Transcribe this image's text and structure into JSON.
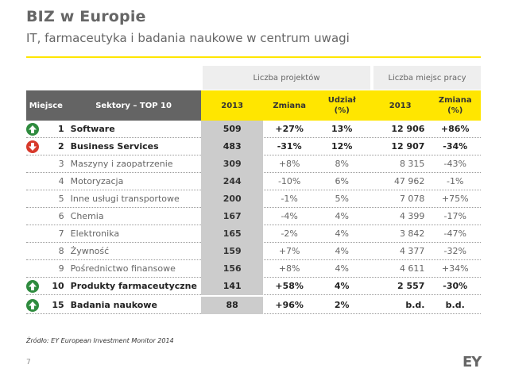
{
  "header": {
    "title": "BIZ w Europie",
    "subtitle": "IT, farmaceutyka i badania naukowe w centrum uwagi"
  },
  "table": {
    "groups": {
      "projects": "Liczba projektów",
      "jobs": "Liczba miejsc pracy"
    },
    "columns": {
      "rank": "Miejsce",
      "sector": "Sektory – TOP 10",
      "projects_2013": "2013",
      "projects_change": "Zmiana",
      "share": "Udział (%)",
      "jobs_2013": "2013",
      "jobs_change": "Zmiana (%)"
    },
    "rows": [
      {
        "rank": "1",
        "sector": "Software",
        "projects": "509",
        "change": "+27%",
        "share": "13%",
        "jobs": "12 906",
        "jobs_change": "+86%"
      },
      {
        "rank": "2",
        "sector": "Business Services",
        "projects": "483",
        "change": "-31%",
        "share": "12%",
        "jobs": "12 907",
        "jobs_change": "-34%"
      },
      {
        "rank": "3",
        "sector": "Maszyny i zaopatrzenie",
        "projects": "309",
        "change": "+8%",
        "share": "8%",
        "jobs": "8 315",
        "jobs_change": "-43%"
      },
      {
        "rank": "4",
        "sector": "Motoryzacja",
        "projects": "244",
        "change": "-10%",
        "share": "6%",
        "jobs": "47 962",
        "jobs_change": "-1%"
      },
      {
        "rank": "5",
        "sector": "Inne usługi transportowe",
        "projects": "200",
        "change": "-1%",
        "share": "5%",
        "jobs": "7 078",
        "jobs_change": "+75%"
      },
      {
        "rank": "6",
        "sector": "Chemia",
        "projects": "167",
        "change": "-4%",
        "share": "4%",
        "jobs": "4 399",
        "jobs_change": "-17%"
      },
      {
        "rank": "7",
        "sector": "Elektronika",
        "projects": "165",
        "change": "-2%",
        "share": "4%",
        "jobs": "3 842",
        "jobs_change": "-47%"
      },
      {
        "rank": "8",
        "sector": "Żywność",
        "projects": "159",
        "change": "+7%",
        "share": "4%",
        "jobs": "4 377",
        "jobs_change": "-32%"
      },
      {
        "rank": "9",
        "sector": "Pośrednictwo finansowe",
        "projects": "156",
        "change": "+8%",
        "share": "4%",
        "jobs": "4 611",
        "jobs_change": "+34%"
      },
      {
        "rank": "10",
        "sector": "Produkty farmaceutyczne",
        "projects": "141",
        "change": "+58%",
        "share": "4%",
        "jobs": "2 557",
        "jobs_change": "-30%"
      },
      {
        "rank": "15",
        "sector": "Badania naukowe",
        "projects": "88",
        "change": "+96%",
        "share": "2%",
        "jobs": "b.d.",
        "jobs_change": "b.d."
      }
    ]
  },
  "footer": {
    "source": "Źródło: EY European Investment Monitor 2014",
    "page_number": "7",
    "logo": "EY"
  },
  "colors": {
    "accent_yellow": "#ffe600",
    "header_dark": "#646464",
    "up_green": "#2e8b3e",
    "down_red": "#d7392b"
  }
}
